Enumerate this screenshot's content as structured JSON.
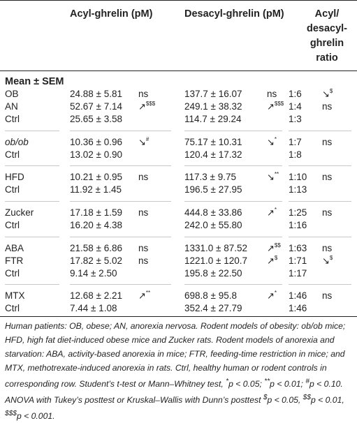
{
  "header": {
    "acyl": "Acyl-ghrelin (pM)",
    "desacyl": "Desacyl-ghrelin (pM)",
    "ratio_lines": [
      "Acyl/",
      "desacyl-",
      "ghrelin",
      "ratio"
    ]
  },
  "section_title": "Mean ± SEM",
  "groups": [
    {
      "rows": [
        {
          "label": "OB",
          "italic": false,
          "acyl": "24.88 ± 5.81",
          "acyl_sig": "ns",
          "desacyl": "137.7 ± 16.07",
          "desacyl_sig": "ns",
          "ratio": "1:6",
          "ratio_sig": "↘$"
        },
        {
          "label": "AN",
          "italic": false,
          "acyl": "52.67 ± 7.14",
          "acyl_sig": "↗$$$",
          "desacyl": "249.1 ± 38.32",
          "desacyl_sig": "↗$$$",
          "ratio": "1:4",
          "ratio_sig": "ns"
        },
        {
          "label": "Ctrl",
          "italic": false,
          "acyl": "25.65 ± 3.58",
          "acyl_sig": "",
          "desacyl": "114.7 ± 29.24",
          "desacyl_sig": "",
          "ratio": "1:3",
          "ratio_sig": ""
        }
      ]
    },
    {
      "rows": [
        {
          "label": "ob/ob",
          "italic": true,
          "acyl": "10.36 ± 0.96",
          "acyl_sig": "↘#",
          "desacyl": "75.17 ± 10.31",
          "desacyl_sig": "↘*",
          "ratio": "1:7",
          "ratio_sig": "ns"
        },
        {
          "label": "Ctrl",
          "italic": false,
          "acyl": "13.02 ± 0.90",
          "acyl_sig": "",
          "desacyl": "120.4 ± 17.32",
          "desacyl_sig": "",
          "ratio": "1:8",
          "ratio_sig": ""
        }
      ]
    },
    {
      "rows": [
        {
          "label": "HFD",
          "italic": false,
          "acyl": "10.21 ± 0.95",
          "acyl_sig": "ns",
          "desacyl": "117.3 ± 9.75",
          "desacyl_sig": "↘**",
          "ratio": "1:10",
          "ratio_sig": "ns"
        },
        {
          "label": "Ctrl",
          "italic": false,
          "acyl": "11.92 ± 1.45",
          "acyl_sig": "",
          "desacyl": "196.5 ± 27.95",
          "desacyl_sig": "",
          "ratio": "1:13",
          "ratio_sig": ""
        }
      ]
    },
    {
      "rows": [
        {
          "label": "Zucker",
          "italic": false,
          "acyl": "17.18 ± 1.59",
          "acyl_sig": "ns",
          "desacyl": "444.8 ± 33.86",
          "desacyl_sig": "↗*",
          "ratio": "1:25",
          "ratio_sig": "ns"
        },
        {
          "label": "Ctrl",
          "italic": false,
          "acyl": "16.20 ± 4.38",
          "acyl_sig": "",
          "desacyl": "242.0 ± 55.80",
          "desacyl_sig": "",
          "ratio": "1:16",
          "ratio_sig": ""
        }
      ]
    },
    {
      "rows": [
        {
          "label": "ABA",
          "italic": false,
          "acyl": "21.58 ± 6.86",
          "acyl_sig": "ns",
          "desacyl": "1331.0 ± 87.52",
          "desacyl_sig": "↗$$",
          "ratio": "1:63",
          "ratio_sig": "ns"
        },
        {
          "label": "FTR",
          "italic": false,
          "acyl": "17.82 ± 5.02",
          "acyl_sig": "ns",
          "desacyl": "1221.0 ± 120.7",
          "desacyl_sig": "↗$",
          "ratio": "1:71",
          "ratio_sig": "↘$"
        },
        {
          "label": "Ctrl",
          "italic": false,
          "acyl": "9.14 ± 2.50",
          "acyl_sig": "",
          "desacyl": "195.8 ± 22.50",
          "desacyl_sig": "",
          "ratio": "1:17",
          "ratio_sig": ""
        }
      ]
    },
    {
      "rows": [
        {
          "label": "MTX",
          "italic": false,
          "acyl": "12.68 ± 2.21",
          "acyl_sig": "↗**",
          "desacyl": "698.8 ± 95.8",
          "desacyl_sig": "↗*",
          "ratio": "1:46",
          "ratio_sig": "ns"
        },
        {
          "label": "Ctrl",
          "italic": false,
          "acyl": "7.44 ± 1.08",
          "acyl_sig": "",
          "desacyl": "352.4 ± 27.79",
          "desacyl_sig": "",
          "ratio": "1:46",
          "ratio_sig": ""
        }
      ]
    }
  ],
  "footnote": "Human patients: OB, obese; AN, anorexia nervosa. Rodent models of obesity: ob/ob mice; HFD, high fat diet-induced obese mice and Zucker rats. Rodent models of anorexia and starvation: ABA, activity-based anorexia in mice; FTR, feeding-time restriction in mice; and MTX, methotrexate-induced anorexia in rats. Ctrl, healthy human or rodent controls in corresponding row. Student’s t-test or Mann–Whitney test, *p < 0.05; **p < 0.01; #p < 0.10. ANOVA with Tukey’s posttest or Kruskal–Wallis with Dunn’s posttest $p < 0.05, $$p < 0.01, $$$p < 0.001."
}
